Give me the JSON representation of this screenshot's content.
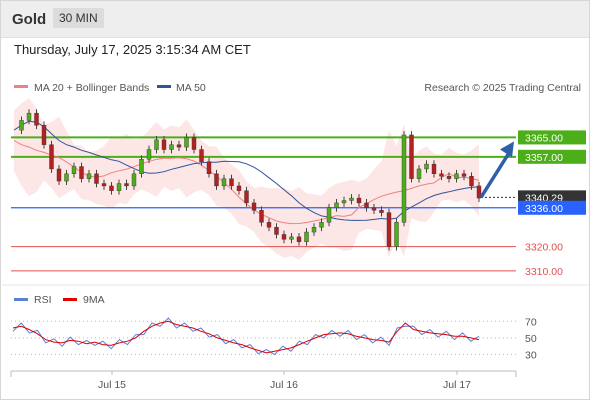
{
  "header": {
    "symbol": "Gold",
    "timeframe": "30 MIN",
    "timestamp": "Thursday, July 17, 2025 3:15:34 AM CET"
  },
  "legend": {
    "ma20_label": "MA 20 + Bollinger Bands",
    "ma50_label": "MA 50",
    "ma20_color": "#f08080",
    "ma50_color": "#2f5597",
    "credit": "Research © 2025 Trading Central"
  },
  "rsi_legend": {
    "rsi_label": "RSI",
    "ma_label": "9MA",
    "rsi_color": "#5b7fd6",
    "ma_color": "#e00000"
  },
  "chart_data": {
    "type": "candlestick",
    "x_labels": [
      "Jul 15",
      "Jul 16",
      "Jul 17"
    ],
    "price_range": [
      3305,
      3380
    ],
    "price_levels": [
      {
        "label": "3365.00",
        "value": 3365,
        "style": "resistance",
        "color": "#4caf1a"
      },
      {
        "label": "3357.00",
        "value": 3357,
        "style": "resistance",
        "color": "#4caf1a"
      },
      {
        "label": "3340.29",
        "value": 3340.29,
        "style": "current",
        "color": "#333333"
      },
      {
        "label": "3336.00",
        "value": 3336,
        "style": "pivot",
        "color": "#2962ff"
      },
      {
        "label": "3320.00",
        "value": 3320,
        "style": "support",
        "color": "#e05050"
      },
      {
        "label": "3310.00",
        "value": 3310,
        "style": "support",
        "color": "#e05050"
      }
    ],
    "forecast_arrow": {
      "from": 3340.29,
      "to": 3365
    },
    "rsi": {
      "range": [
        15,
        80
      ],
      "ticks": [
        "70",
        "50",
        "30"
      ],
      "tick_values": [
        70,
        50,
        30
      ]
    },
    "price_path": [
      3368,
      3372,
      3375,
      3370,
      3362,
      3352,
      3347,
      3350,
      3353,
      3348,
      3350,
      3346,
      3345,
      3343,
      3346,
      3345,
      3350,
      3356,
      3360,
      3364,
      3360,
      3362,
      3361,
      3365,
      3360,
      3355,
      3350,
      3345,
      3348,
      3345,
      3343,
      3338,
      3335,
      3330,
      3328,
      3325,
      3323,
      3324,
      3322,
      3326,
      3328,
      3330,
      3336,
      3338,
      3339,
      3340,
      3338,
      3336,
      3335,
      3334,
      3320,
      3330,
      3366,
      3348,
      3352,
      3354,
      3350,
      3349,
      3348,
      3350,
      3349,
      3345,
      3340
    ],
    "rsi_path": [
      62,
      64,
      60,
      55,
      48,
      45,
      44,
      47,
      46,
      43,
      45,
      42,
      41,
      44,
      46,
      50,
      58,
      64,
      68,
      70,
      66,
      64,
      62,
      58,
      55,
      50,
      47,
      44,
      42,
      38,
      35,
      32,
      34,
      36,
      38,
      42,
      46,
      50,
      54,
      55,
      56,
      55,
      52,
      50,
      48,
      47,
      45,
      58,
      68,
      60,
      58,
      56,
      55,
      54,
      52,
      52,
      50,
      48
    ]
  }
}
